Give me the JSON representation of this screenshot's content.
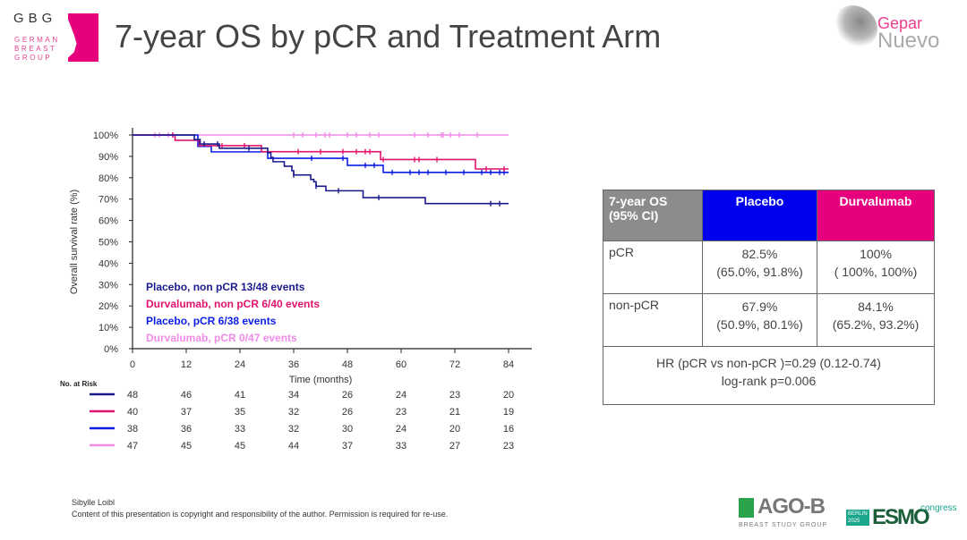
{
  "header": {
    "logo_gbg": "GBG",
    "logo_gbg_sub": [
      "GERMAN",
      "BREAST",
      "GROUP"
    ],
    "title": "7-year OS by pCR and Treatment Arm",
    "logo_gepar": "Gepar",
    "logo_nuevo": "Nuevo"
  },
  "chart_data": {
    "type": "line",
    "subtype": "kaplan-meier",
    "xlabel": "Time (months)",
    "ylabel": "Overall survival rate (%)",
    "xlim": [
      0,
      84
    ],
    "ylim": [
      0,
      100
    ],
    "xticks": [
      0,
      12,
      24,
      36,
      48,
      60,
      72,
      84
    ],
    "yticks": [
      "0%",
      "10%",
      "20%",
      "30%",
      "40%",
      "50%",
      "60%",
      "70%",
      "80%",
      "90%",
      "100%"
    ],
    "grid": false,
    "legend_position": "bottom-left",
    "series": [
      {
        "name": "Placebo, non pCR 13/48 events",
        "color": "#1a1a8c",
        "steps": [
          [
            0,
            100
          ],
          [
            13.8,
            97.9
          ],
          [
            15.1,
            95.8
          ],
          [
            19.4,
            93.8
          ],
          [
            30.2,
            91.7
          ],
          [
            30.9,
            89.5
          ],
          [
            31.4,
            87.5
          ],
          [
            33.9,
            85.4
          ],
          [
            35.6,
            83.3
          ],
          [
            36,
            81.3
          ],
          [
            39.8,
            79.2
          ],
          [
            40.5,
            78.1
          ],
          [
            41,
            76
          ],
          [
            43.2,
            73.9
          ],
          [
            51.5,
            70.7
          ],
          [
            65.4,
            67.9
          ],
          [
            84,
            67.9
          ]
        ],
        "censored": [
          16,
          19,
          26,
          36,
          41,
          46,
          55,
          80,
          82
        ]
      },
      {
        "name": "Durvalumab, non pCR 6/40 events",
        "color": "#e0136f",
        "steps": [
          [
            0,
            100
          ],
          [
            9.5,
            97.5
          ],
          [
            14.9,
            95
          ],
          [
            28.8,
            92.2
          ],
          [
            55.4,
            88.5
          ],
          [
            76.6,
            84.1
          ],
          [
            84,
            84.1
          ]
        ],
        "censored": [
          9,
          20,
          25,
          37,
          42,
          47,
          50,
          52,
          53,
          63,
          56,
          64,
          68,
          79,
          83
        ]
      },
      {
        "name": "Placebo, pCR 6/38 events",
        "color": "#0a1ee6",
        "steps": [
          [
            0,
            100
          ],
          [
            14.6,
            94.7
          ],
          [
            17.6,
            92.1
          ],
          [
            30.2,
            89.1
          ],
          [
            48,
            85.8
          ],
          [
            56,
            82.5
          ],
          [
            84,
            82.5
          ]
        ],
        "censored": [
          40,
          47,
          52,
          54,
          58,
          62,
          64,
          66,
          70,
          74,
          78,
          80,
          82,
          83
        ]
      },
      {
        "name": "Durvalumab, pCR 0/47 events",
        "color": "#f08ce8",
        "steps": [
          [
            0,
            100
          ],
          [
            84,
            100
          ]
        ],
        "censored": [
          5,
          6,
          8,
          9,
          36,
          38,
          41,
          43,
          44,
          48,
          50,
          53,
          55,
          63,
          66,
          69,
          69.4,
          71,
          73,
          77
        ]
      }
    ],
    "risk_table": {
      "label": "No. at Risk",
      "rows": [
        [
          48,
          46,
          41,
          34,
          26,
          24,
          23,
          20
        ],
        [
          40,
          37,
          35,
          32,
          26,
          23,
          21,
          19
        ],
        [
          38,
          36,
          33,
          32,
          30,
          24,
          20,
          16
        ],
        [
          47,
          45,
          45,
          44,
          37,
          33,
          27,
          23
        ]
      ]
    }
  },
  "os_table": {
    "header": [
      "7-year OS",
      "(95% CI)",
      "Placebo",
      "Durvalumab"
    ],
    "rows": [
      {
        "label": "pCR",
        "placebo": [
          "82.5%",
          "(65.0%, 91.8%)"
        ],
        "durvalumab": [
          "100%",
          "( 100%, 100%)"
        ]
      },
      {
        "label": "non-pCR",
        "placebo": [
          "67.9%",
          "(50.9%, 80.1%)"
        ],
        "durvalumab": [
          "84.1%",
          "(65.2%, 93.2%)"
        ]
      }
    ],
    "footer": [
      "HR (pCR vs non-pCR )=0.29 (0.12-0.74)",
      "log-rank p=0.006"
    ]
  },
  "footer": {
    "author": "Sibylle Loibl",
    "copyright": "Content of this presentation is copyright and responsibility of the author. Permission is required for re-use.",
    "ago": "AGO-B",
    "ago_sub": "BREAST STUDY GROUP",
    "esmo_box": [
      "BERLIN",
      "2025"
    ],
    "esmo": "ESMO",
    "congress": "congress"
  }
}
